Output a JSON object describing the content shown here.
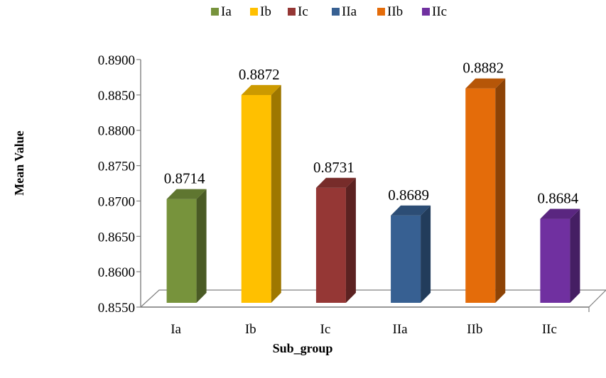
{
  "chart_data": {
    "type": "bar",
    "categories": [
      "Ia",
      "Ib",
      "Ic",
      "IIa",
      "IIb",
      "IIc"
    ],
    "values": [
      0.8714,
      0.8872,
      0.8731,
      0.8689,
      0.8882,
      0.8684
    ],
    "data_labels": [
      "0.8714",
      "0.8872",
      "0.8731",
      "0.8689",
      "0.8882",
      "0.8684"
    ],
    "colors": [
      "#77933c",
      "#ffc000",
      "#953735",
      "#376092",
      "#e46c0a",
      "#7030a0"
    ],
    "legend": [
      "Ia",
      "Ib",
      "Ic",
      "IIa",
      "IIb",
      "IIc"
    ],
    "legend_position": "top",
    "xlabel": "Sub_group",
    "ylabel": "Mean Value",
    "ylim": [
      0.855,
      0.89
    ],
    "yticks": [
      "0.8550",
      "0.8600",
      "0.8650",
      "0.8700",
      "0.8750",
      "0.8800",
      "0.8850",
      "0.8900"
    ],
    "style": "3d-column",
    "grid": false
  }
}
